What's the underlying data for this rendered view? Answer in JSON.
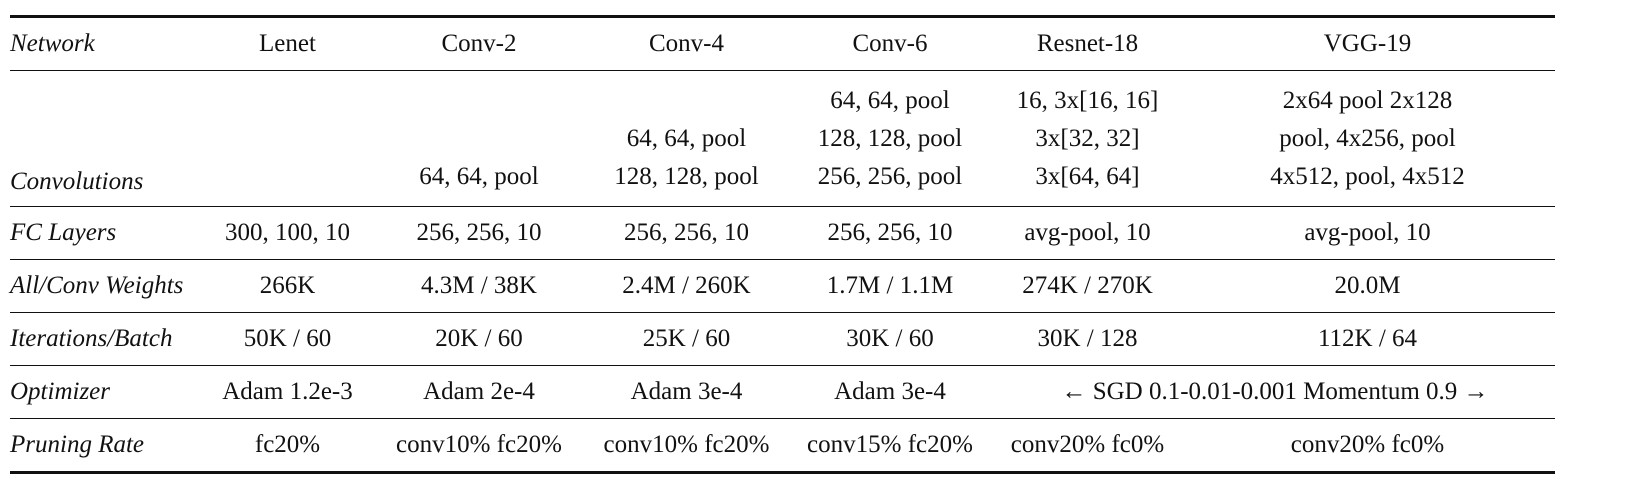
{
  "header": [
    "Network",
    "Lenet",
    "Conv-2",
    "Conv-4",
    "Conv-6",
    "Resnet-18",
    "VGG-19"
  ],
  "rows": [
    {
      "label": "Convolutions",
      "cells": [
        [],
        [
          "64, 64, pool"
        ],
        [
          "64, 64, pool",
          "128, 128, pool"
        ],
        [
          "64, 64, pool",
          "128, 128, pool",
          "256, 256, pool"
        ],
        [
          "16, 3x[16, 16]",
          "3x[32, 32]",
          "3x[64, 64]"
        ],
        [
          "2x64 pool 2x128",
          "pool, 4x256, pool",
          "4x512, pool, 4x512"
        ]
      ]
    },
    {
      "label": "FC Layers",
      "cells": [
        "300, 100, 10",
        "256, 256, 10",
        "256, 256, 10",
        "256, 256, 10",
        "avg-pool, 10",
        "avg-pool, 10"
      ]
    },
    {
      "label": "All/Conv Weights",
      "cells": [
        "266K",
        "4.3M / 38K",
        "2.4M / 260K",
        "1.7M / 1.1M",
        "274K / 270K",
        "20.0M"
      ]
    },
    {
      "label": "Iterations/Batch",
      "cells": [
        "50K / 60",
        "20K / 60",
        "25K / 60",
        "30K / 60",
        "30K / 128",
        "112K / 64"
      ]
    },
    {
      "label": "Optimizer",
      "cells": [
        "Adam 1.2e-3",
        "Adam 2e-4",
        "Adam 3e-4",
        "Adam 3e-4",
        "← SGD 0.1-0.01-0.001 Momentum 0.9 →"
      ]
    },
    {
      "label": "Pruning Rate",
      "cells": [
        "fc20%",
        "conv10% fc20%",
        "conv10% fc20%",
        "conv15% fc20%",
        "conv20% fc0%",
        "conv20% fc0%"
      ]
    }
  ]
}
